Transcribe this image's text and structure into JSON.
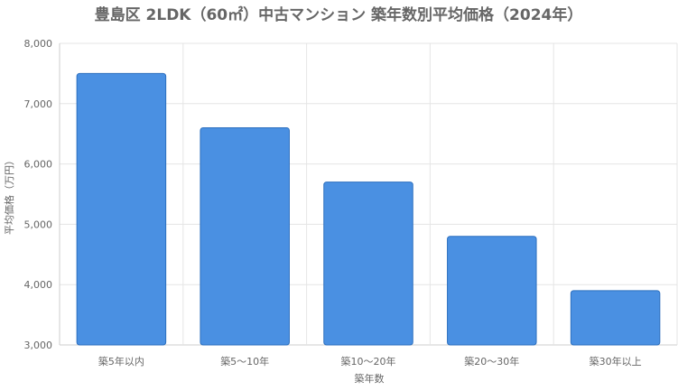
{
  "chart_data": {
    "type": "bar",
    "title": "豊島区 2LDK（60㎡）中古マンション 築年数別平均価格（2024年）",
    "xlabel": "築年数",
    "ylabel": "平均価格（万円）",
    "categories": [
      "築5年以内",
      "築5〜10年",
      "築10〜20年",
      "築20〜30年",
      "築30年以上"
    ],
    "series": [
      {
        "values": [
          7500,
          6600,
          5700,
          4800,
          3900
        ]
      }
    ],
    "ylim": [
      3000,
      8000
    ],
    "yticks": [
      3000,
      4000,
      5000,
      6000,
      7000,
      8000
    ],
    "ytick_labels": [
      "3,000",
      "4,000",
      "5,000",
      "6,000",
      "7,000",
      "8,000"
    ],
    "grid": true,
    "legend": "none",
    "colors": {
      "bar_fill": "#4a90e2",
      "bar_stroke": "#2c6fbf",
      "text": "#666666",
      "grid": "#e5e5e5"
    }
  }
}
